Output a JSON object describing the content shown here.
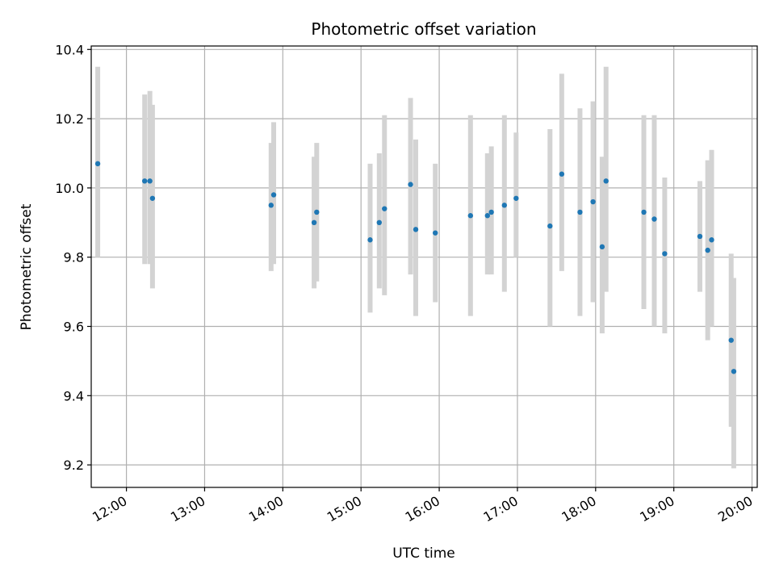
{
  "chart_data": {
    "type": "scatter",
    "title": "Photometric offset variation",
    "xlabel": "UTC time",
    "ylabel": "Photometric offset",
    "x_ticks": [
      "12:00",
      "13:00",
      "14:00",
      "15:00",
      "16:00",
      "17:00",
      "18:00",
      "19:00",
      "20:00"
    ],
    "y_ticks": [
      "9.2",
      "9.4",
      "9.6",
      "9.8",
      "10.0",
      "10.2",
      "10.4"
    ],
    "xlim": [
      "11:33",
      "20:04"
    ],
    "ylim": [
      9.135,
      10.41
    ],
    "grid": true,
    "colors": {
      "point": "#1f77b4",
      "errorbar": "#d3d3d3",
      "grid": "#b0b0b0"
    },
    "points": [
      {
        "x": "11:38",
        "y": 10.07,
        "lo": 9.8,
        "hi": 10.35
      },
      {
        "x": "12:14",
        "y": 10.02,
        "lo": 9.78,
        "hi": 10.27
      },
      {
        "x": "12:18",
        "y": 10.02,
        "lo": 9.78,
        "hi": 10.28
      },
      {
        "x": "12:20",
        "y": 9.97,
        "lo": 9.71,
        "hi": 10.24
      },
      {
        "x": "13:51",
        "y": 9.95,
        "lo": 9.76,
        "hi": 10.13
      },
      {
        "x": "13:53",
        "y": 9.98,
        "lo": 9.78,
        "hi": 10.19
      },
      {
        "x": "14:24",
        "y": 9.9,
        "lo": 9.71,
        "hi": 10.09
      },
      {
        "x": "14:26",
        "y": 9.93,
        "lo": 9.73,
        "hi": 10.13
      },
      {
        "x": "15:07",
        "y": 9.85,
        "lo": 9.64,
        "hi": 10.07
      },
      {
        "x": "15:14",
        "y": 9.9,
        "lo": 9.71,
        "hi": 10.1
      },
      {
        "x": "15:18",
        "y": 9.94,
        "lo": 9.69,
        "hi": 10.21
      },
      {
        "x": "15:38",
        "y": 10.01,
        "lo": 9.75,
        "hi": 10.26
      },
      {
        "x": "15:42",
        "y": 9.88,
        "lo": 9.63,
        "hi": 10.14
      },
      {
        "x": "15:57",
        "y": 9.87,
        "lo": 9.67,
        "hi": 10.07
      },
      {
        "x": "16:24",
        "y": 9.92,
        "lo": 9.63,
        "hi": 10.21
      },
      {
        "x": "16:37",
        "y": 9.92,
        "lo": 9.75,
        "hi": 10.1
      },
      {
        "x": "16:40",
        "y": 9.93,
        "lo": 9.75,
        "hi": 10.12
      },
      {
        "x": "16:50",
        "y": 9.95,
        "lo": 9.7,
        "hi": 10.21
      },
      {
        "x": "16:59",
        "y": 9.97,
        "lo": 9.8,
        "hi": 10.16
      },
      {
        "x": "17:25",
        "y": 9.89,
        "lo": 9.6,
        "hi": 10.17
      },
      {
        "x": "17:34",
        "y": 10.04,
        "lo": 9.76,
        "hi": 10.33
      },
      {
        "x": "17:48",
        "y": 9.93,
        "lo": 9.63,
        "hi": 10.23
      },
      {
        "x": "17:58",
        "y": 9.96,
        "lo": 9.67,
        "hi": 10.25
      },
      {
        "x": "18:05",
        "y": 9.83,
        "lo": 9.58,
        "hi": 10.09
      },
      {
        "x": "18:08",
        "y": 10.02,
        "lo": 9.7,
        "hi": 10.35
      },
      {
        "x": "18:37",
        "y": 9.93,
        "lo": 9.65,
        "hi": 10.21
      },
      {
        "x": "18:45",
        "y": 9.91,
        "lo": 9.6,
        "hi": 10.21
      },
      {
        "x": "18:53",
        "y": 9.81,
        "lo": 9.58,
        "hi": 10.03
      },
      {
        "x": "19:20",
        "y": 9.86,
        "lo": 9.7,
        "hi": 10.02
      },
      {
        "x": "19:26",
        "y": 9.82,
        "lo": 9.56,
        "hi": 10.08
      },
      {
        "x": "19:29",
        "y": 9.85,
        "lo": 9.6,
        "hi": 10.11
      },
      {
        "x": "19:44",
        "y": 9.56,
        "lo": 9.31,
        "hi": 9.81
      },
      {
        "x": "19:46",
        "y": 9.47,
        "lo": 9.19,
        "hi": 9.74
      }
    ]
  }
}
